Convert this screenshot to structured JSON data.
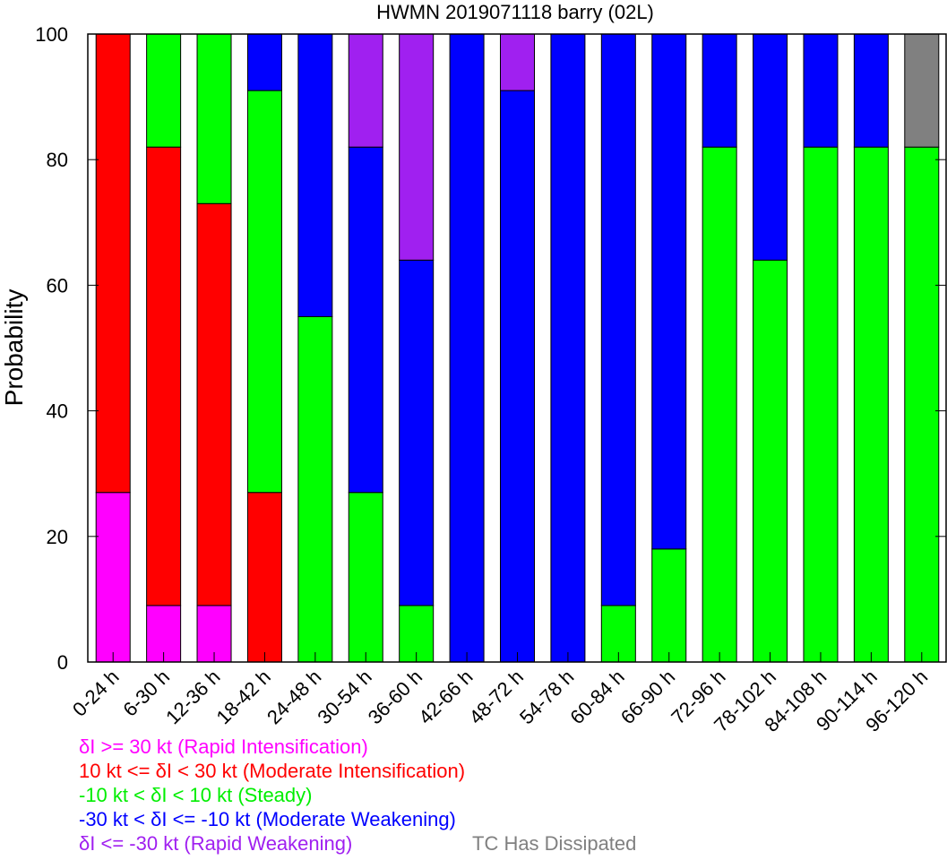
{
  "chart_data": {
    "type": "bar",
    "stacked": true,
    "title": "HWMN 2019071118 barry (02L)",
    "ylabel": "Probability",
    "xlabel": "",
    "ylim": [
      0,
      100
    ],
    "yticks": [
      0,
      20,
      40,
      60,
      80,
      100
    ],
    "grid": false,
    "legend_position": "bottom-left, below axis",
    "categories": [
      "0-24 h",
      "6-30 h",
      "12-36 h",
      "18-42 h",
      "24-48 h",
      "30-54 h",
      "36-60 h",
      "42-66 h",
      "48-72 h",
      "54-78 h",
      "60-84 h",
      "66-90 h",
      "72-96 h",
      "78-102 h",
      "84-108 h",
      "90-114 h",
      "96-120 h"
    ],
    "series": [
      {
        "name": "δI >= 30 kt (Rapid Intensification)",
        "color": "#ff00ff",
        "values": [
          27,
          9,
          9,
          0,
          0,
          0,
          0,
          0,
          0,
          0,
          0,
          0,
          0,
          0,
          0,
          0,
          0
        ]
      },
      {
        "name": "10 kt <= δI < 30 kt (Moderate Intensification)",
        "color": "#ff0000",
        "values": [
          73,
          73,
          64,
          27,
          0,
          0,
          0,
          0,
          0,
          0,
          0,
          0,
          0,
          0,
          0,
          0,
          0
        ]
      },
      {
        "name": "-10 kt < δI < 10 kt (Steady)",
        "color": "#00ff00",
        "values": [
          0,
          18,
          27,
          64,
          55,
          27,
          9,
          0,
          0,
          0,
          9,
          18,
          82,
          64,
          82,
          82,
          82
        ]
      },
      {
        "name": "-30 kt < δI <= -10 kt (Moderate Weakening)",
        "color": "#0000ff",
        "values": [
          0,
          0,
          0,
          9,
          45,
          55,
          55,
          100,
          91,
          100,
          91,
          82,
          18,
          36,
          18,
          18,
          0
        ]
      },
      {
        "name": "δI <= -30 kt (Rapid Weakening)",
        "color": "#a020f0",
        "values": [
          0,
          0,
          0,
          0,
          0,
          18,
          36,
          0,
          9,
          0,
          0,
          0,
          0,
          0,
          0,
          0,
          0
        ]
      },
      {
        "name": "TC Has Dissipated",
        "color": "#808080",
        "values": [
          0,
          0,
          0,
          0,
          0,
          0,
          0,
          0,
          0,
          0,
          0,
          0,
          0,
          0,
          0,
          0,
          18
        ]
      }
    ]
  }
}
